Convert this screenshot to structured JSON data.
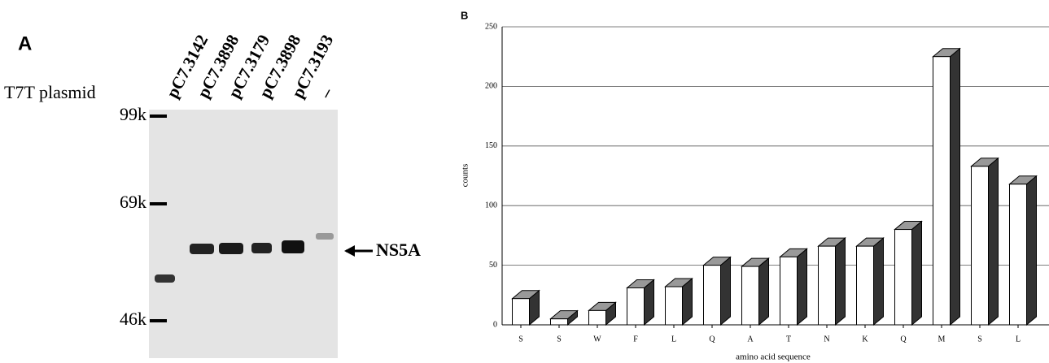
{
  "panel_a": {
    "label": "A",
    "row_label": "T7T plasmid",
    "lanes": [
      "pC7.3142",
      "pC7.3898",
      "pC7.3179",
      "pC7.3898",
      "pC7.3193",
      "–"
    ],
    "markers": [
      "99k",
      "69k",
      "46k"
    ],
    "band_label": "NS5A"
  },
  "chart_data": {
    "type": "bar3d",
    "panel_label": "B",
    "x_label": "amino acid sequence",
    "y_label": "counts",
    "categories": [
      "S",
      "S",
      "W",
      "F",
      "L",
      "Q",
      "A",
      "T",
      "N",
      "K",
      "Q",
      "M",
      "S",
      "L"
    ],
    "values": [
      22,
      5,
      12,
      31,
      32,
      50,
      49,
      57,
      66,
      66,
      80,
      225,
      133,
      118
    ],
    "ylim": [
      0,
      250
    ],
    "yticks": [
      0,
      50,
      100,
      150,
      200,
      250
    ],
    "grid": true
  }
}
